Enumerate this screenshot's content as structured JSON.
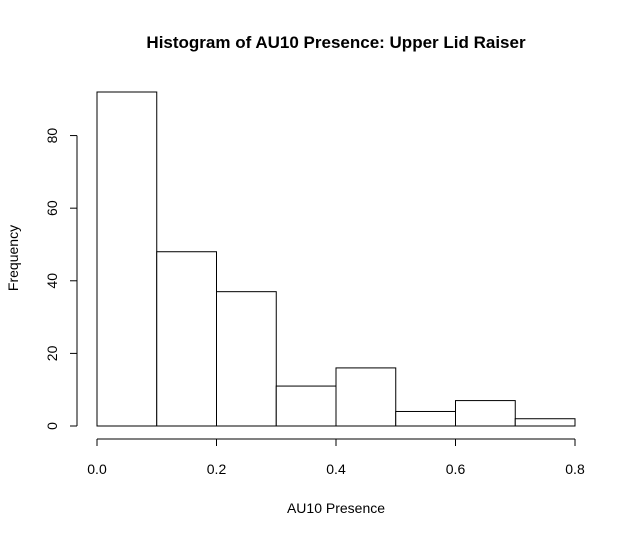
{
  "chart_data": {
    "type": "bar",
    "title": "Histogram of AU10 Presence: Upper Lid Raiser",
    "xlabel": "AU10 Presence",
    "ylabel": "Frequency",
    "bins": [
      {
        "start": 0.0,
        "end": 0.1,
        "count": 92
      },
      {
        "start": 0.1,
        "end": 0.2,
        "count": 48
      },
      {
        "start": 0.2,
        "end": 0.3,
        "count": 37
      },
      {
        "start": 0.3,
        "end": 0.4,
        "count": 11
      },
      {
        "start": 0.4,
        "end": 0.5,
        "count": 16
      },
      {
        "start": 0.5,
        "end": 0.6,
        "count": 4
      },
      {
        "start": 0.6,
        "end": 0.7,
        "count": 7
      },
      {
        "start": 0.7,
        "end": 0.8,
        "count": 2
      }
    ],
    "xlim": [
      0.0,
      0.8
    ],
    "ylim": [
      0,
      92
    ],
    "x_ticks": [
      {
        "value": 0.0,
        "label": "0.0"
      },
      {
        "value": 0.2,
        "label": "0.2"
      },
      {
        "value": 0.4,
        "label": "0.4"
      },
      {
        "value": 0.6,
        "label": "0.6"
      },
      {
        "value": 0.8,
        "label": "0.8"
      }
    ],
    "y_ticks": [
      {
        "value": 0,
        "label": "0"
      },
      {
        "value": 20,
        "label": "20"
      },
      {
        "value": 40,
        "label": "40"
      },
      {
        "value": 60,
        "label": "60"
      },
      {
        "value": 80,
        "label": "80"
      }
    ],
    "grid": false,
    "colors": {
      "bar_fill": "#ffffff",
      "bar_stroke": "#000000"
    }
  }
}
